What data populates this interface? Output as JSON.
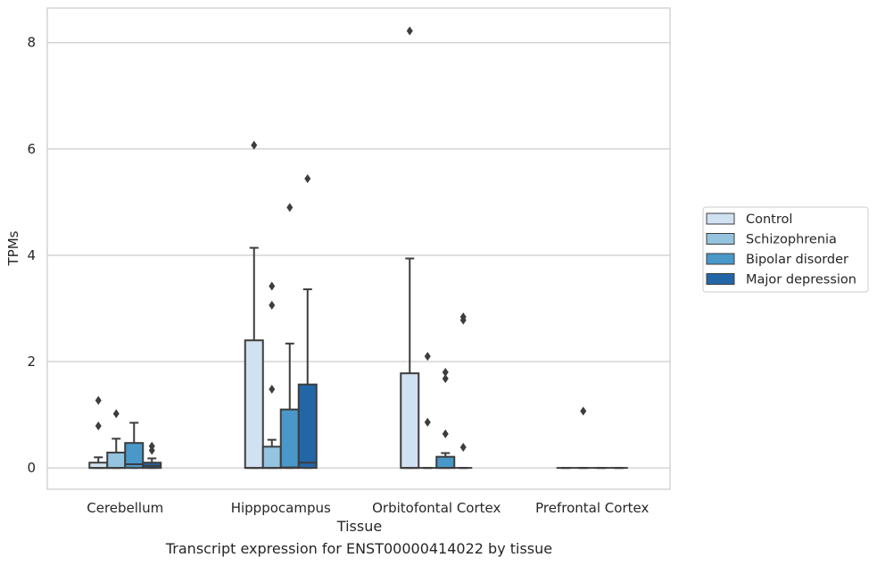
{
  "caption": "Transcript expression for ENST00000414022 by tissue",
  "chart_data": {
    "type": "boxplot",
    "xlabel": "Tissue",
    "ylabel": "TPMs",
    "categories": [
      "Cerebellum",
      "Hipppocampus",
      "Orbitofontal Cortex",
      "Prefrontal Cortex"
    ],
    "ylim": [
      -0.4,
      8.65
    ],
    "yticks": [
      "0",
      "2",
      "4",
      "6",
      "8"
    ],
    "grid": "horizontal",
    "legend_position": "right-center",
    "series": [
      {
        "name": "Control",
        "color": "#d0e1f2",
        "boxes": [
          {
            "q1": 0,
            "median": 0,
            "q3": 0.1,
            "whisker_low": 0,
            "whisker_high": 0.2,
            "outliers": [
              0.79,
              1.27
            ]
          },
          {
            "q1": 0,
            "median": 0,
            "q3": 2.4,
            "whisker_low": 0,
            "whisker_high": 4.14,
            "outliers": [
              6.07
            ]
          },
          {
            "q1": 0,
            "median": 0,
            "q3": 1.78,
            "whisker_low": 0,
            "whisker_high": 3.94,
            "outliers": [
              8.22
            ]
          },
          {
            "q1": 0,
            "median": 0,
            "q3": 0,
            "whisker_low": 0,
            "whisker_high": 0,
            "outliers": []
          }
        ]
      },
      {
        "name": "Schizophrenia",
        "color": "#94c4df",
        "boxes": [
          {
            "q1": 0,
            "median": 0,
            "q3": 0.29,
            "whisker_low": 0,
            "whisker_high": 0.55,
            "outliers": [
              1.02
            ]
          },
          {
            "q1": 0,
            "median": 0,
            "q3": 0.4,
            "whisker_low": 0,
            "whisker_high": 0.53,
            "outliers": [
              1.48,
              3.06,
              3.42
            ]
          },
          {
            "q1": 0,
            "median": 0,
            "q3": 0,
            "whisker_low": 0,
            "whisker_high": 0,
            "outliers": [
              0.86,
              2.1
            ]
          },
          {
            "q1": 0,
            "median": 0,
            "q3": 0,
            "whisker_low": 0,
            "whisker_high": 0,
            "outliers": [
              1.07
            ]
          }
        ]
      },
      {
        "name": "Bipolar disorder",
        "color": "#4a98c9",
        "boxes": [
          {
            "q1": 0,
            "median": 0.07,
            "q3": 0.47,
            "whisker_low": 0,
            "whisker_high": 0.85,
            "outliers": []
          },
          {
            "q1": 0,
            "median": 0.01,
            "q3": 1.1,
            "whisker_low": 0,
            "whisker_high": 2.34,
            "outliers": [
              4.9
            ]
          },
          {
            "q1": 0,
            "median": 0,
            "q3": 0.21,
            "whisker_low": 0,
            "whisker_high": 0.28,
            "outliers": [
              0.64,
              1.68,
              1.8
            ]
          },
          {
            "q1": 0,
            "median": 0,
            "q3": 0,
            "whisker_low": 0,
            "whisker_high": 0,
            "outliers": []
          }
        ]
      },
      {
        "name": "Major depression",
        "color": "#2366a8",
        "boxes": [
          {
            "q1": 0,
            "median": 0.04,
            "q3": 0.1,
            "whisker_low": 0,
            "whisker_high": 0.18,
            "outliers": [
              0.33,
              0.41
            ]
          },
          {
            "q1": 0,
            "median": 0.1,
            "q3": 1.57,
            "whisker_low": 0,
            "whisker_high": 3.36,
            "outliers": [
              5.44
            ]
          },
          {
            "q1": 0,
            "median": 0,
            "q3": 0,
            "whisker_low": 0,
            "whisker_high": 0,
            "outliers": [
              0.39,
              2.78,
              2.84
            ]
          },
          {
            "q1": 0,
            "median": 0,
            "q3": 0,
            "whisker_low": 0,
            "whisker_high": 0,
            "outliers": []
          }
        ]
      }
    ]
  }
}
